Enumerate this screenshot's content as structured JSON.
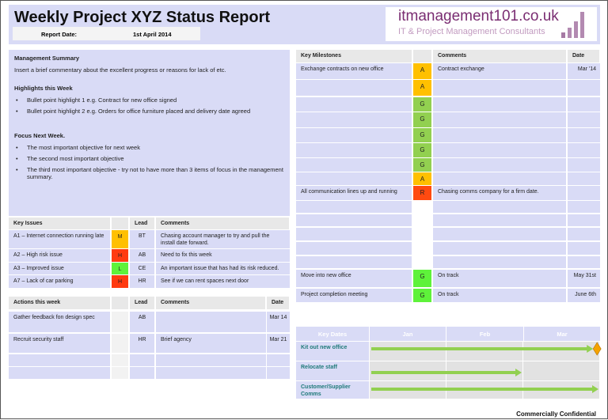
{
  "header": {
    "title": "Weekly Project XYZ Status Report",
    "report_date_label": "Report Date:",
    "report_date": "1st April 2014",
    "logo": {
      "domain": "itmanagement101.co.uk",
      "tagline": "IT & Project Management Consultants"
    }
  },
  "summary": {
    "heading": "Management Summary",
    "commentary": "Insert a brief commentary about the excellent  progress or reasons for lack of etc.",
    "highlights_heading": "Highlights this Week",
    "highlights": [
      "Bullet point highlight 1 e.g. Contract for new office signed",
      "Bullet point highlight 2 e.g. Orders for office furniture placed and delivery date agreed"
    ],
    "focus_heading": "Focus Next Week.",
    "focus": [
      "The most important objective for next week",
      "The second most important objective",
      "The third most important objective  - try not to have more than 3 items of focus in the management summary."
    ]
  },
  "colors": {
    "A": "#ffc000",
    "G": "#92d050",
    "R": "#ff4a10",
    "M": "#ffc000",
    "H": "#ff3b10",
    "L": "#5ef23a",
    "G2": "#5ef23a",
    "lavender": "#d9dbf6"
  },
  "milestones": {
    "headers": [
      "Key Milestones",
      "",
      "Comments",
      "Date"
    ],
    "rows": [
      {
        "name": "Exchange contracts on new office",
        "rag": "A",
        "comment": "Contract exchange",
        "date": "Mar '14"
      },
      {
        "name": "",
        "rag": "A",
        "comment": "",
        "date": ""
      },
      {
        "name": "",
        "rag": "G",
        "comment": "",
        "date": ""
      },
      {
        "name": "",
        "rag": "G",
        "comment": "",
        "date": ""
      },
      {
        "name": "",
        "rag": "G",
        "comment": "",
        "date": ""
      },
      {
        "name": "",
        "rag": "G",
        "comment": "",
        "date": ""
      },
      {
        "name": "",
        "rag": "G",
        "comment": "",
        "date": ""
      },
      {
        "name": "",
        "rag": "A",
        "comment": "",
        "date": ""
      },
      {
        "name": "All communication lines up and running",
        "rag": "R",
        "comment": "Chasing comms company for a firm date.",
        "date": ""
      },
      {
        "name": "",
        "rag": "",
        "comment": "",
        "date": ""
      },
      {
        "name": "",
        "rag": "",
        "comment": "",
        "date": ""
      },
      {
        "name": "",
        "rag": "",
        "comment": "",
        "date": ""
      },
      {
        "name": "",
        "rag": "",
        "comment": "",
        "date": ""
      },
      {
        "name": "",
        "rag": "",
        "comment": "",
        "date": ""
      },
      {
        "name": "Move into new office",
        "rag": "G2",
        "comment": "On track",
        "date": "May 31st"
      },
      {
        "name": "Project completion meeting",
        "rag": "G2",
        "comment": "On track",
        "date": "June 6th"
      }
    ]
  },
  "issues": {
    "headers": [
      "Key Issues",
      "",
      "Lead",
      "Comments"
    ],
    "rows": [
      {
        "name": "A1 – Internet connection running late",
        "rag": "M",
        "lead": "BT",
        "comment": "Chasing account manager to try and pull the install date forward."
      },
      {
        "name": "A2 – High risk issue",
        "rag": "H",
        "lead": "AB",
        "comment": "Need to fix this week"
      },
      {
        "name": "A3 – Improved issue",
        "rag": "L",
        "lead": "CE",
        "comment": "An important issue that has had its risk reduced."
      },
      {
        "name": "A7 – Lack of car parking",
        "rag": "H",
        "lead": "HR",
        "comment": "See if we can rent spaces next door"
      }
    ]
  },
  "actions": {
    "headers": [
      "Actions this week",
      "",
      "Lead",
      "Comments",
      "Date"
    ],
    "rows": [
      {
        "name": "Gather feedback fon design spec",
        "lead": "AB",
        "comment": "",
        "date": "Mar 14"
      },
      {
        "name": "Recruit security staff",
        "lead": "HR",
        "comment": "Brief agency",
        "date": "Mar 21"
      },
      {
        "name": "",
        "lead": "",
        "comment": "",
        "date": ""
      },
      {
        "name": "",
        "lead": "",
        "comment": "",
        "date": ""
      }
    ]
  },
  "gantt": {
    "headers": [
      "Key Dates",
      "Jan",
      "Feb",
      "Mar"
    ],
    "rows": [
      {
        "label": "Kit out new office",
        "start_month": 0,
        "end_month": 2.93,
        "milestone": true
      },
      {
        "label": "Relocate staff",
        "start_month": 0,
        "end_month": 2.0,
        "milestone": false
      },
      {
        "label": "Customer/Supplier Comms",
        "start_month": 0,
        "end_month": 3.0,
        "milestone": false
      }
    ]
  },
  "footer": "Commercially Confidential"
}
